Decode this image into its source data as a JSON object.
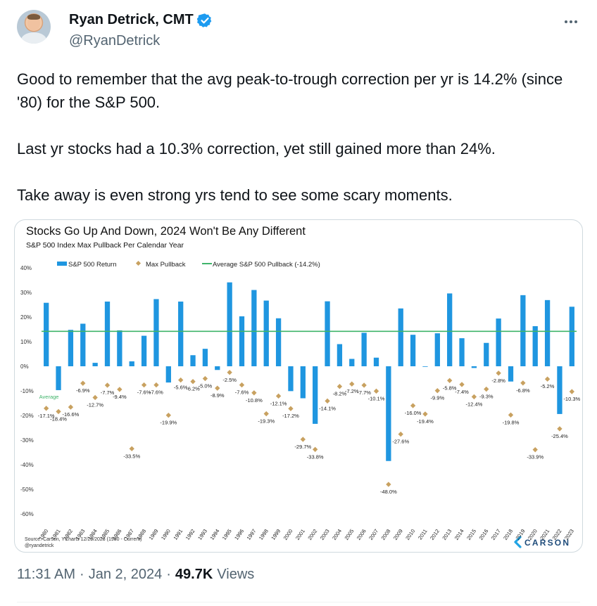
{
  "author": {
    "display_name": "Ryan Detrick, CMT",
    "handle": "@RyanDetrick",
    "verified": true,
    "verified_color": "#1d9bf0"
  },
  "tweet": {
    "paragraphs": [
      "Good to remember that the avg peak-to-trough correction per yr is 14.2% (since '80) for the S&P 500.",
      "Last yr stocks had a 10.3% correction, yet still gained more than 24%.",
      "Take away is even strong yrs tend to see some scary moments."
    ],
    "time": "11:31 AM",
    "date": "Jan 2, 2024",
    "views_count": "49.7K",
    "views_label": "Views"
  },
  "icons": {
    "menu": "more-horizontal-icon",
    "badge": "verified-badge-icon"
  },
  "chart_data": {
    "type": "bar",
    "title": "Stocks Go Up And Down, 2024 Won't Be Any Different",
    "subtitle": "S&P 500 Index Max Pullback Per Calendar Year",
    "legend": {
      "placement": "top",
      "items": [
        "S&P 500 Return",
        "Max Pullback",
        "Average S&P 500 Pullback (-14.2%)"
      ]
    },
    "average_label": "Average",
    "average_line_value": 14.2,
    "ylim": [
      -60,
      40
    ],
    "yticks": [
      40,
      30,
      20,
      10,
      0,
      -10,
      -20,
      -30,
      -40,
      -50,
      -60
    ],
    "ytick_labels": [
      "40%",
      "30%",
      "20%",
      "10%",
      "0%",
      "-10%",
      "-20%",
      "-30%",
      "-40%",
      "-50%",
      "-60%"
    ],
    "grid": false,
    "categories": [
      "1980",
      "1981",
      "1982",
      "1983",
      "1984",
      "1985",
      "1986",
      "1987",
      "1988",
      "1989",
      "1990",
      "1991",
      "1992",
      "1993",
      "1994",
      "1995",
      "1996",
      "1997",
      "1998",
      "1999",
      "2000",
      "2001",
      "2002",
      "2003",
      "2004",
      "2005",
      "2006",
      "2007",
      "2008",
      "2009",
      "2010",
      "2011",
      "2012",
      "2013",
      "2014",
      "2015",
      "2016",
      "2017",
      "2018",
      "2019",
      "2020",
      "2021",
      "2022",
      "2023"
    ],
    "series": [
      {
        "name": "S&P 500 Return",
        "type": "bar",
        "color": "#1f96e0",
        "values": [
          25.8,
          -9.7,
          14.8,
          17.3,
          1.4,
          26.3,
          14.6,
          2.0,
          12.4,
          27.3,
          -6.6,
          26.3,
          4.5,
          7.1,
          -1.5,
          34.1,
          20.3,
          31.0,
          26.7,
          19.5,
          -10.1,
          -13.0,
          -23.4,
          26.4,
          9.0,
          3.0,
          13.6,
          3.5,
          -38.5,
          23.5,
          12.8,
          0.0,
          13.4,
          29.6,
          11.4,
          -0.7,
          9.5,
          19.4,
          -6.2,
          28.9,
          16.3,
          26.9,
          -19.4,
          24.2
        ]
      },
      {
        "name": "Max Pullback",
        "type": "scatter",
        "color": "#c8a160",
        "values": [
          -17.1,
          -18.4,
          -16.6,
          -6.9,
          -12.7,
          -7.7,
          -9.4,
          -33.5,
          -7.6,
          -7.6,
          -19.9,
          -5.6,
          -6.2,
          -5.0,
          -8.9,
          -2.5,
          -7.6,
          -10.8,
          -19.3,
          -12.1,
          -17.2,
          -29.7,
          -33.8,
          -14.1,
          -8.2,
          -7.2,
          -7.7,
          -10.1,
          -48.0,
          -27.6,
          -16.0,
          -19.4,
          -9.9,
          -5.8,
          -7.4,
          -12.4,
          -9.3,
          -2.8,
          -19.8,
          -6.8,
          -33.9,
          -5.2,
          -25.4,
          -10.3
        ],
        "labels": [
          "-17.1%",
          "-18.4%",
          "-16.6%",
          "-6.9%",
          "-12.7%",
          "-7.7%",
          "-9.4%",
          "-33.5%",
          "-7.6%",
          "-7.6%",
          "-19.9%",
          "-5.6%",
          "-6.2%",
          "-5.0%",
          "-8.9%",
          "-2.5%",
          "-7.6%",
          "-10.8%",
          "-19.3%",
          "-12.1%",
          "-17.2%",
          "-29.7%",
          "-33.8%",
          "-14.1%",
          "-8.2%",
          "-7.2%",
          "-7.7%",
          "-10.1%",
          "-48.0%",
          "-27.6%",
          "-16.0%",
          "-19.4%",
          "-9.9%",
          "-5.8%",
          "-7.4%",
          "-12.4%",
          "-9.3%",
          "-2.8%",
          "-19.8%",
          "-6.8%",
          "-33.9%",
          "-5.2%",
          "-25.4%",
          "-10.3%"
        ]
      }
    ],
    "average_line_color": "#3fb46a",
    "source_lines": [
      "Source: Carson, YCharts 12/29/2023 (1980 - Current)",
      "@ryandetrick"
    ],
    "brand_text": "CARSON",
    "brand_color": "#1e4b7a"
  }
}
